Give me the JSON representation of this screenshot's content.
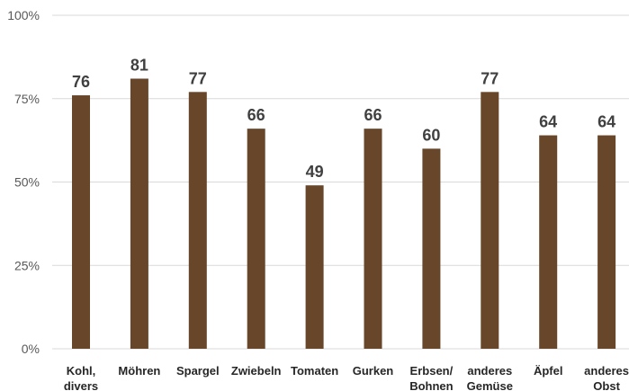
{
  "chart_data": {
    "type": "bar",
    "categories": [
      [
        "Kohl,",
        "divers"
      ],
      [
        "Möhren"
      ],
      [
        "Spargel"
      ],
      [
        "Zwiebeln"
      ],
      [
        "Tomaten"
      ],
      [
        "Gurken"
      ],
      [
        "Erbsen/",
        "Bohnen"
      ],
      [
        "anderes",
        "Gemüse"
      ],
      [
        "Äpfel"
      ],
      [
        "anderes",
        "Obst"
      ]
    ],
    "values": [
      76,
      81,
      77,
      66,
      49,
      66,
      60,
      77,
      64,
      64
    ],
    "data_labels": [
      "76",
      "81",
      "77",
      "66",
      "49",
      "66",
      "60",
      "77",
      "64",
      "64"
    ],
    "y_ticks": [
      {
        "value": 0,
        "label": "0%"
      },
      {
        "value": 25,
        "label": "25%"
      },
      {
        "value": 50,
        "label": "50%"
      },
      {
        "value": 75,
        "label": "75%"
      },
      {
        "value": 100,
        "label": "100%"
      }
    ],
    "ylim": [
      0,
      100
    ],
    "grid": true,
    "title": "",
    "xlabel": "",
    "ylabel": "",
    "bar_color": "#67462a",
    "grid_color": "#d9d9d9"
  }
}
